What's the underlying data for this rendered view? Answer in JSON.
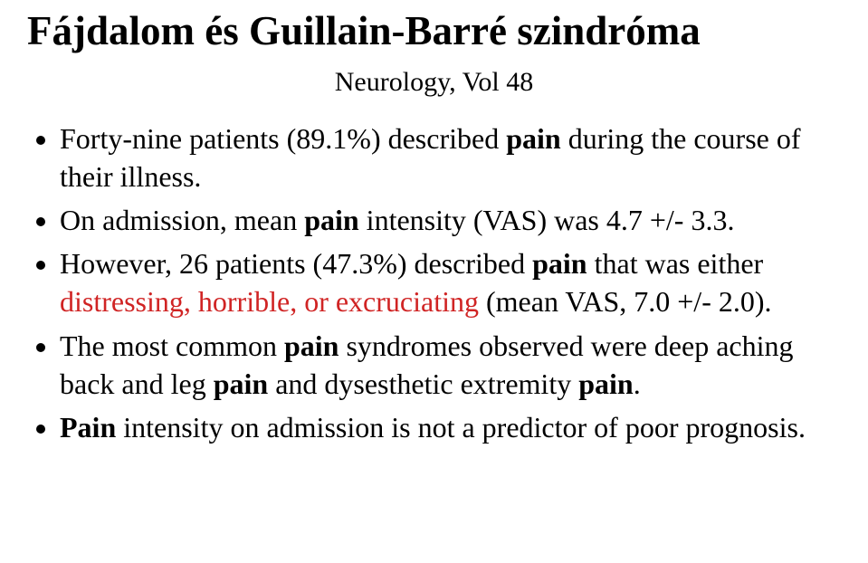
{
  "colors": {
    "background": "#ffffff",
    "text": "#000000",
    "highlight": "#d02424"
  },
  "typography": {
    "font_family": "Times New Roman",
    "title_fontsize": 45,
    "title_fontweight": "bold",
    "subtitle_fontsize": 30,
    "body_fontsize": 32,
    "line_height": 1.32
  },
  "title": "Fájdalom és Guillain-Barré szindróma",
  "subtitle": "Neurology, Vol 48",
  "bullets": {
    "b1": {
      "pre": "Forty-nine patients (89.1%) described ",
      "pain": "pain",
      "post": " during the course of their illness."
    },
    "b2": {
      "pre": "On admission, mean ",
      "pain": "pain",
      "post": " intensity (VAS) was 4.7 +/- 3.3."
    },
    "b3": {
      "pre": "However, 26 patients (47.3%) described ",
      "pain": "pain",
      "mid": " that was either ",
      "hl": "distressing, horrible, or excruciating",
      "post": " (mean VAS, 7.0 +/- 2.0)."
    },
    "b4": {
      "pre": "The most common ",
      "pain1": "pain",
      "mid1": " syndromes observed were deep aching back and leg ",
      "pain2": "pain",
      "mid2": " and dysesthetic extremity ",
      "pain3": "pain",
      "post": "."
    },
    "b5": {
      "pre": " ",
      "pain": "Pain",
      "post": " intensity on admission is not a predictor of poor prognosis."
    }
  }
}
